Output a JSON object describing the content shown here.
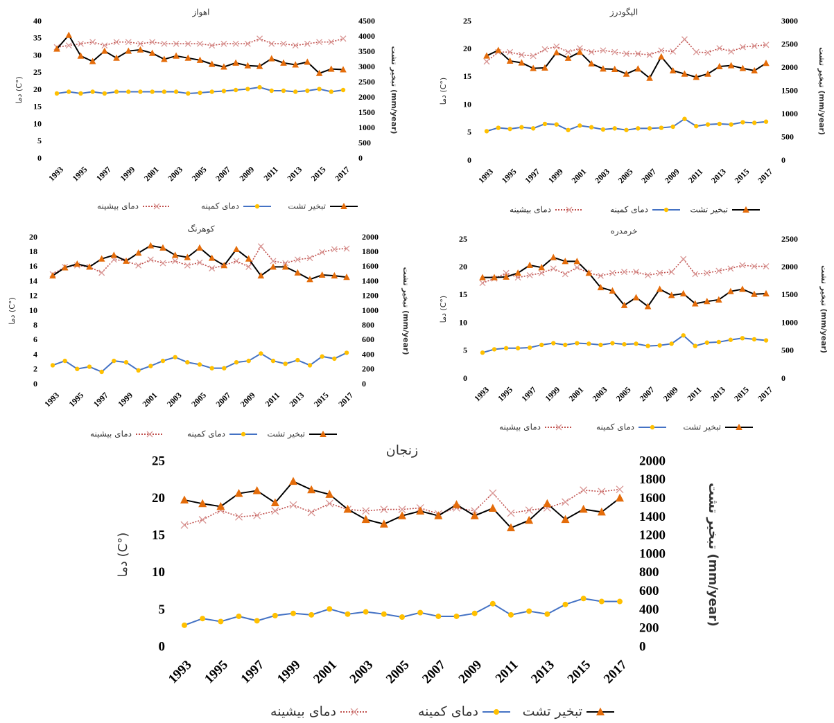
{
  "chart_data": [
    {
      "type": "line",
      "title": "اهواز",
      "ylabel": "دما (C°)",
      "y2label": "تبخیر تشت (mm/year)",
      "x": [
        1993,
        1994,
        1995,
        1996,
        1997,
        1998,
        1999,
        2000,
        2001,
        2002,
        2003,
        2004,
        2005,
        2006,
        2007,
        2008,
        2009,
        2010,
        2011,
        2012,
        2013,
        2014,
        2015,
        2016,
        2017
      ],
      "xlim": [
        1993,
        2017
      ],
      "xticks": [
        1993,
        1995,
        1997,
        1999,
        2001,
        2003,
        2005,
        2007,
        2009,
        2011,
        2013,
        2015,
        2017
      ],
      "ylim": [
        0,
        40
      ],
      "yticks": [
        0,
        5,
        10,
        15,
        20,
        25,
        30,
        35,
        40
      ],
      "y2lim": [
        0,
        4500
      ],
      "y2ticks": [
        0,
        500,
        1000,
        1500,
        2000,
        2500,
        3000,
        3500,
        4000,
        4500
      ],
      "grid": false,
      "series": [
        {
          "name": "دمای بیشینه",
          "color": "#c0504d",
          "marker_color": "#d99694",
          "values": [
            32.5,
            33,
            33.5,
            34,
            33,
            34,
            34,
            33.5,
            34,
            33.5,
            33.5,
            33.5,
            33.5,
            33,
            33.5,
            33.5,
            33.5,
            35,
            33.5,
            33.5,
            33,
            33.5,
            34,
            34,
            35
          ]
        },
        {
          "name": "دمای کمینه",
          "color": "#4472c4",
          "marker_color": "#ffc000",
          "values": [
            19,
            19.5,
            19,
            19.5,
            19,
            19.5,
            19.5,
            19.5,
            19.5,
            19.5,
            19.5,
            19,
            19.2,
            19.5,
            19.7,
            20,
            20.3,
            20.8,
            19.8,
            19.8,
            19.5,
            19.8,
            20.3,
            19.5,
            20
          ]
        },
        {
          "name": "تبخیر تشت",
          "color": "#000000",
          "marker_color": "#e46c0a",
          "axis": "y2",
          "values": [
            3600,
            4050,
            3370,
            3190,
            3530,
            3300,
            3530,
            3570,
            3460,
            3260,
            3370,
            3300,
            3230,
            3100,
            3010,
            3140,
            3050,
            3030,
            3280,
            3140,
            3080,
            3170,
            2800,
            2940,
            2920
          ]
        }
      ]
    },
    {
      "type": "line",
      "title": "الیگودرز",
      "ylabel": "دما (C°)",
      "y2label": "تبخیر تشت (mm/year)",
      "x": [
        1993,
        1994,
        1995,
        1996,
        1997,
        1998,
        1999,
        2000,
        2001,
        2002,
        2003,
        2004,
        2005,
        2006,
        2007,
        2008,
        2009,
        2010,
        2011,
        2012,
        2013,
        2014,
        2015,
        2016,
        2017
      ],
      "xlim": [
        1993,
        2017
      ],
      "xticks": [
        1993,
        1995,
        1997,
        1999,
        2001,
        2003,
        2005,
        2007,
        2009,
        2011,
        2013,
        2015,
        2017
      ],
      "ylim": [
        0,
        25
      ],
      "yticks": [
        0,
        5,
        10,
        15,
        20,
        25
      ],
      "y2lim": [
        0,
        3000
      ],
      "y2ticks": [
        0,
        500,
        1000,
        1500,
        2000,
        2500,
        3000
      ],
      "grid": false,
      "series": [
        {
          "name": "دمای بیشینه",
          "color": "#c0504d",
          "marker_color": "#d99694",
          "values": [
            17.8,
            19.5,
            19.5,
            19,
            18.8,
            20,
            20.5,
            19.5,
            20.2,
            19.5,
            19.8,
            19.5,
            19.2,
            19.2,
            19,
            19.8,
            19.6,
            21.8,
            19.5,
            19.4,
            20.2,
            19.6,
            20.4,
            20.6,
            20.8
          ]
        },
        {
          "name": "دمای کمینه",
          "color": "#4472c4",
          "marker_color": "#ffc000",
          "values": [
            5.3,
            5.9,
            5.7,
            6,
            5.8,
            6.6,
            6.5,
            5.5,
            6.3,
            6,
            5.6,
            5.8,
            5.5,
            5.8,
            5.8,
            5.9,
            6.1,
            7.5,
            6.2,
            6.5,
            6.6,
            6.5,
            6.9,
            6.8,
            7
          ]
        },
        {
          "name": "تبخیر تشت",
          "color": "#000000",
          "marker_color": "#e46c0a",
          "axis": "y2",
          "values": [
            2260,
            2380,
            2150,
            2110,
            1990,
            2000,
            2330,
            2210,
            2340,
            2090,
            1980,
            1970,
            1870,
            1980,
            1780,
            2240,
            1940,
            1870,
            1800,
            1870,
            2030,
            2050,
            1990,
            1940,
            2100
          ]
        }
      ]
    },
    {
      "type": "line",
      "title": "کوهرنگ",
      "ylabel": "دما (C°)",
      "y2label": "تبخیر تشت (mm/year)",
      "x": [
        1993,
        1994,
        1995,
        1996,
        1997,
        1998,
        1999,
        2000,
        2001,
        2002,
        2003,
        2004,
        2005,
        2006,
        2007,
        2008,
        2009,
        2010,
        2011,
        2012,
        2013,
        2014,
        2015,
        2016,
        2017
      ],
      "xlim": [
        1993,
        2017
      ],
      "xticks": [
        1993,
        1995,
        1997,
        1999,
        2001,
        2003,
        2005,
        2007,
        2009,
        2011,
        2013,
        2015,
        2017
      ],
      "ylim": [
        0,
        20
      ],
      "yticks": [
        0,
        2,
        4,
        6,
        8,
        10,
        12,
        14,
        16,
        18,
        20
      ],
      "y2lim": [
        0,
        2000
      ],
      "y2ticks": [
        0,
        200,
        400,
        600,
        800,
        1000,
        1200,
        1400,
        1600,
        1800,
        2000
      ],
      "grid": false,
      "series": [
        {
          "name": "دمای بیشینه",
          "color": "#c0504d",
          "marker_color": "#d99694",
          "values": [
            15,
            16,
            16.2,
            16,
            15.2,
            17,
            16.8,
            16.2,
            17,
            16.5,
            16.8,
            16.2,
            16.6,
            15.8,
            16.2,
            16.8,
            16,
            18.8,
            16.8,
            16.5,
            17,
            17.2,
            18,
            18.4,
            18.5
          ]
        },
        {
          "name": "دمای کمینه",
          "color": "#4472c4",
          "marker_color": "#ffc000",
          "values": [
            2.6,
            3.2,
            2.1,
            2.4,
            1.7,
            3.2,
            3,
            1.9,
            2.5,
            3.2,
            3.7,
            3,
            2.7,
            2.2,
            2.2,
            3,
            3.2,
            4.2,
            3.2,
            2.8,
            3.3,
            2.6,
            3.8,
            3.5,
            4.3
          ]
        },
        {
          "name": "تبخیر تشت",
          "color": "#000000",
          "marker_color": "#e46c0a",
          "axis": "y2",
          "values": [
            1480,
            1590,
            1640,
            1600,
            1710,
            1760,
            1680,
            1790,
            1890,
            1860,
            1760,
            1730,
            1860,
            1720,
            1620,
            1840,
            1710,
            1480,
            1600,
            1600,
            1520,
            1430,
            1490,
            1480,
            1460
          ]
        }
      ]
    },
    {
      "type": "line",
      "title": "خرمدره",
      "ylabel": "دما (C°)",
      "y2label": "تبخیر تشت (mm/year)",
      "x": [
        1993,
        1994,
        1995,
        1996,
        1997,
        1998,
        1999,
        2000,
        2001,
        2002,
        2003,
        2004,
        2005,
        2006,
        2007,
        2008,
        2009,
        2010,
        2011,
        2012,
        2013,
        2014,
        2015,
        2016,
        2017
      ],
      "xlim": [
        1993,
        2017
      ],
      "xticks": [
        1993,
        1995,
        1997,
        1999,
        2001,
        2003,
        2005,
        2007,
        2009,
        2011,
        2013,
        2015,
        2017
      ],
      "ylim": [
        0,
        25
      ],
      "yticks": [
        0,
        5,
        10,
        15,
        20,
        25
      ],
      "y2lim": [
        0,
        2500
      ],
      "y2ticks": [
        0,
        500,
        1000,
        1500,
        2000,
        2500
      ],
      "grid": false,
      "series": [
        {
          "name": "دمای بیشینه",
          "color": "#c0504d",
          "marker_color": "#d99694",
          "values": [
            17.2,
            18,
            19,
            18.2,
            18.6,
            19,
            19.8,
            18.8,
            20,
            19,
            18.5,
            19,
            19.2,
            19.2,
            18.6,
            19,
            19.2,
            21.5,
            18.8,
            19,
            19.4,
            19.8,
            20.4,
            20.2,
            20.2
          ]
        },
        {
          "name": "دمای کمینه",
          "color": "#4472c4",
          "marker_color": "#ffc000",
          "values": [
            4.7,
            5.3,
            5.5,
            5.5,
            5.6,
            6.1,
            6.4,
            6.1,
            6.4,
            6.3,
            6.1,
            6.4,
            6.2,
            6.3,
            5.9,
            6,
            6.3,
            7.8,
            5.9,
            6.5,
            6.6,
            7,
            7.3,
            7.1,
            6.9
          ]
        },
        {
          "name": "تبخیر تشت",
          "color": "#000000",
          "marker_color": "#e46c0a",
          "axis": "y2",
          "values": [
            1820,
            1820,
            1830,
            1900,
            2040,
            2000,
            2180,
            2110,
            2110,
            1900,
            1640,
            1580,
            1320,
            1460,
            1300,
            1610,
            1500,
            1530,
            1350,
            1390,
            1420,
            1570,
            1610,
            1520,
            1530
          ]
        }
      ]
    },
    {
      "type": "line",
      "title": "زنجان",
      "ylabel": "دما (C°)",
      "y2label": "تبخیر تشت (mm/year)",
      "x": [
        1993,
        1994,
        1995,
        1996,
        1997,
        1998,
        1999,
        2000,
        2001,
        2002,
        2003,
        2004,
        2005,
        2006,
        2007,
        2008,
        2009,
        2010,
        2011,
        2012,
        2013,
        2014,
        2015,
        2016,
        2017
      ],
      "xlim": [
        1993,
        2017
      ],
      "xticks": [
        1993,
        1995,
        1997,
        1999,
        2001,
        2003,
        2005,
        2007,
        2009,
        2011,
        2013,
        2015,
        2017
      ],
      "ylim": [
        0,
        25
      ],
      "yticks": [
        0,
        5,
        10,
        15,
        20,
        25
      ],
      "y2lim": [
        0,
        2000
      ],
      "y2ticks": [
        0,
        200,
        400,
        600,
        800,
        1000,
        1200,
        1400,
        1600,
        1800,
        2000
      ],
      "grid": false,
      "series": [
        {
          "name": "دمای بیشینه",
          "color": "#c0504d",
          "marker_color": "#d99694",
          "values": [
            16.5,
            17.2,
            18.5,
            17.6,
            17.8,
            18.4,
            19.2,
            18.2,
            19.4,
            18.6,
            18.4,
            18.6,
            18.6,
            18.8,
            18,
            18.8,
            18.4,
            20.8,
            18.1,
            18.5,
            18.8,
            19.6,
            21.2,
            21,
            21.3
          ]
        },
        {
          "name": "دمای کمینه",
          "color": "#4472c4",
          "marker_color": "#ffc000",
          "values": [
            3,
            3.9,
            3.5,
            4.2,
            3.6,
            4.3,
            4.6,
            4.4,
            5.2,
            4.5,
            4.8,
            4.5,
            4.1,
            4.7,
            4.2,
            4.2,
            4.6,
            5.9,
            4.4,
            4.9,
            4.5,
            5.8,
            6.6,
            6.2,
            6.2
          ]
        },
        {
          "name": "تبخیر تشت",
          "color": "#000000",
          "marker_color": "#e46c0a",
          "axis": "y2",
          "values": [
            1590,
            1550,
            1520,
            1660,
            1690,
            1560,
            1790,
            1700,
            1650,
            1490,
            1380,
            1330,
            1420,
            1470,
            1420,
            1540,
            1420,
            1500,
            1290,
            1370,
            1550,
            1380,
            1490,
            1460,
            1610
          ]
        }
      ]
    }
  ]
}
